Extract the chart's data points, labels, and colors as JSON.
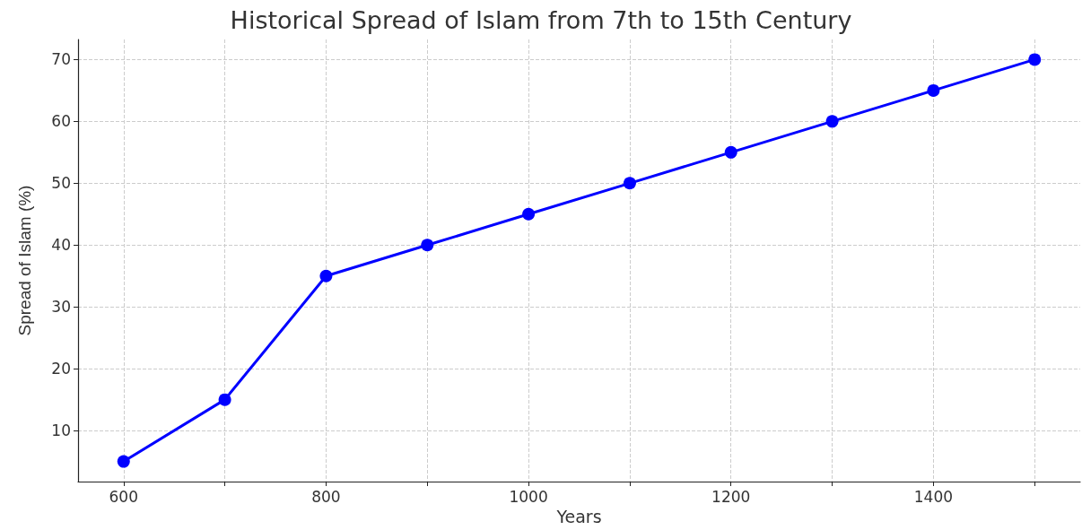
{
  "chart_data": {
    "type": "line",
    "title": "Historical Spread of Islam from 7th to 15th Century",
    "xlabel": "Years",
    "ylabel": "Spread of Islam (%)",
    "x": [
      600,
      700,
      800,
      900,
      1000,
      1100,
      1200,
      1300,
      1400,
      1500
    ],
    "series": [
      {
        "color": "#0000ff",
        "values": [
          5,
          15,
          35,
          40,
          45,
          50,
          55,
          60,
          65,
          70
        ]
      }
    ],
    "xlim": [
      555,
      1545
    ],
    "xticks": [
      600,
      {
        "value": 700,
        "label": null
      },
      800,
      {
        "value": 900,
        "label": null
      },
      1000,
      {
        "value": 1100,
        "label": null
      },
      1200,
      {
        "value": 1300,
        "label": null
      },
      1400,
      {
        "value": 1500,
        "label": null
      }
    ],
    "ylim": [
      1.75,
      73.25
    ],
    "yticks": [
      10,
      20,
      30,
      40,
      50,
      60,
      70
    ],
    "grid": true,
    "marker": "circle",
    "line_style": "solid"
  }
}
